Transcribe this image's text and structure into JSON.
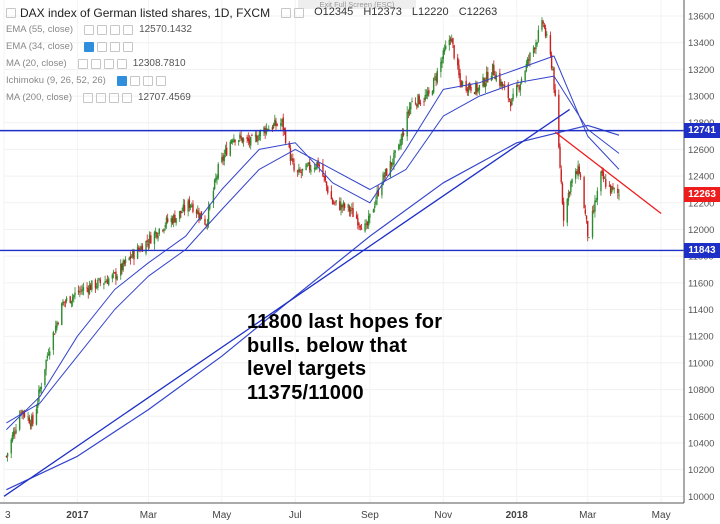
{
  "window": {
    "exit_fullscreen_label": "Exit Full Screen (ESC)"
  },
  "legend": {
    "title": "DAX index of German listed shares, 1D, FXCM",
    "ohlc": {
      "open": "O12345",
      "high": "H12373",
      "low": "L12220",
      "close": "C12263"
    },
    "indicators": [
      {
        "name": "EMA (55, close)",
        "value": "12570.1432"
      },
      {
        "name": "EMA (34, close)",
        "value": ""
      },
      {
        "name": "MA (20, close)",
        "value": "12308.7810"
      },
      {
        "name": "Ichimoku (9, 26, 52, 26)",
        "value": ""
      },
      {
        "name": "MA (200, close)",
        "value": "12707.4569"
      }
    ]
  },
  "annotation": {
    "lines": [
      "11800 last hopes for",
      "bulls. below that",
      "level targets",
      "11375/11000"
    ]
  },
  "price_badges": [
    {
      "label": "12741",
      "value": 12741,
      "color": "#1e2fc7"
    },
    {
      "label": "12263",
      "value": 12263,
      "color": "#ee1d1d"
    },
    {
      "label": "11843",
      "value": 11843,
      "color": "#1e2fc7"
    }
  ],
  "colors": {
    "up_candle": "#2d8a2d",
    "down_candle": "#c81e1e",
    "horizontal_level": "#1e2fc7",
    "trendline_up": "#1e2fc7",
    "trendline_down": "#ee1d1d",
    "ma_line": "#3344cc"
  },
  "chart_data": {
    "type": "candlestick",
    "title": "DAX index of German listed shares, 1D, FXCM",
    "y_axis": {
      "side": "right",
      "ylim": [
        9950,
        13720
      ],
      "ticks": [
        10000,
        10200,
        10400,
        10600,
        10800,
        11000,
        11200,
        11400,
        11600,
        11800,
        12000,
        12200,
        12400,
        12600,
        12800,
        13000,
        13200,
        13400,
        13600
      ],
      "tick_labels": [
        "10000",
        "10200",
        "10400",
        "10600",
        "10800",
        "11000",
        "11200",
        "11400",
        "11600",
        "11800",
        "12000",
        "12200",
        "12400",
        "12600",
        "12800",
        "13000",
        "13200",
        "13400",
        "13600"
      ]
    },
    "x_axis": {
      "xlim": [
        "2016-11-01",
        "2018-05-20"
      ],
      "ticks": [
        {
          "date": "2016-11-01",
          "label": "3"
        },
        {
          "date": "2017-01-01",
          "label": "2017"
        },
        {
          "date": "2017-03-01",
          "label": "Mar"
        },
        {
          "date": "2017-05-01",
          "label": "May"
        },
        {
          "date": "2017-07-01",
          "label": "Jul"
        },
        {
          "date": "2017-09-01",
          "label": "Sep"
        },
        {
          "date": "2017-11-01",
          "label": "Nov"
        },
        {
          "date": "2018-01-01",
          "label": "2018"
        },
        {
          "date": "2018-03-01",
          "label": "Mar"
        },
        {
          "date": "2018-05-01",
          "label": "May"
        }
      ]
    },
    "key_closes": [
      {
        "date": "2016-11-03",
        "close": 10300
      },
      {
        "date": "2016-11-15",
        "close": 10650
      },
      {
        "date": "2016-11-25",
        "close": 10550
      },
      {
        "date": "2016-12-08",
        "close": 11100
      },
      {
        "date": "2016-12-20",
        "close": 11450
      },
      {
        "date": "2017-01-05",
        "close": 11550
      },
      {
        "date": "2017-01-20",
        "close": 11600
      },
      {
        "date": "2017-02-01",
        "close": 11650
      },
      {
        "date": "2017-02-15",
        "close": 11800
      },
      {
        "date": "2017-03-01",
        "close": 11920
      },
      {
        "date": "2017-03-15",
        "close": 12050
      },
      {
        "date": "2017-03-25",
        "close": 12100
      },
      {
        "date": "2017-04-05",
        "close": 12200
      },
      {
        "date": "2017-04-18",
        "close": 12050
      },
      {
        "date": "2017-04-28",
        "close": 12450
      },
      {
        "date": "2017-05-10",
        "close": 12700
      },
      {
        "date": "2017-05-25",
        "close": 12650
      },
      {
        "date": "2017-06-05",
        "close": 12750
      },
      {
        "date": "2017-06-20",
        "close": 12800
      },
      {
        "date": "2017-07-01",
        "close": 12400
      },
      {
        "date": "2017-07-10",
        "close": 12450
      },
      {
        "date": "2017-07-20",
        "close": 12500
      },
      {
        "date": "2017-08-01",
        "close": 12200
      },
      {
        "date": "2017-08-15",
        "close": 12150
      },
      {
        "date": "2017-08-29",
        "close": 12000
      },
      {
        "date": "2017-09-10",
        "close": 12350
      },
      {
        "date": "2017-09-25",
        "close": 12600
      },
      {
        "date": "2017-10-05",
        "close": 12950
      },
      {
        "date": "2017-10-20",
        "close": 13000
      },
      {
        "date": "2017-11-07",
        "close": 13450
      },
      {
        "date": "2017-11-15",
        "close": 13100
      },
      {
        "date": "2017-11-30",
        "close": 13050
      },
      {
        "date": "2017-12-12",
        "close": 13200
      },
      {
        "date": "2017-12-28",
        "close": 12950
      },
      {
        "date": "2018-01-10",
        "close": 13250
      },
      {
        "date": "2018-01-23",
        "close": 13550
      },
      {
        "date": "2018-01-31",
        "close": 13200
      },
      {
        "date": "2018-02-05",
        "close": 12600
      },
      {
        "date": "2018-02-09",
        "close": 12100
      },
      {
        "date": "2018-02-15",
        "close": 12350
      },
      {
        "date": "2018-02-22",
        "close": 12450
      },
      {
        "date": "2018-03-02",
        "close": 11900
      },
      {
        "date": "2018-03-05",
        "close": 12100
      },
      {
        "date": "2018-03-12",
        "close": 12400
      },
      {
        "date": "2018-03-20",
        "close": 12300
      },
      {
        "date": "2018-03-27",
        "close": 12263
      }
    ],
    "ema_55": [
      {
        "date": "2016-11-03",
        "value": 10550
      },
      {
        "date": "2016-12-01",
        "value": 10700
      },
      {
        "date": "2017-01-01",
        "value": 11050
      },
      {
        "date": "2017-02-01",
        "value": 11400
      },
      {
        "date": "2017-03-01",
        "value": 11650
      },
      {
        "date": "2017-04-01",
        "value": 11850
      },
      {
        "date": "2017-05-01",
        "value": 12150
      },
      {
        "date": "2017-06-01",
        "value": 12450
      },
      {
        "date": "2017-07-01",
        "value": 12600
      },
      {
        "date": "2017-08-01",
        "value": 12450
      },
      {
        "date": "2017-09-01",
        "value": 12300
      },
      {
        "date": "2017-10-01",
        "value": 12450
      },
      {
        "date": "2017-11-01",
        "value": 12850
      },
      {
        "date": "2017-12-01",
        "value": 13000
      },
      {
        "date": "2018-01-01",
        "value": 13100
      },
      {
        "date": "2018-02-01",
        "value": 13150
      },
      {
        "date": "2018-03-01",
        "value": 12750
      },
      {
        "date": "2018-03-27",
        "value": 12570
      }
    ],
    "ema_34": [
      {
        "date": "2016-11-03",
        "value": 10500
      },
      {
        "date": "2016-12-01",
        "value": 10750
      },
      {
        "date": "2017-01-01",
        "value": 11200
      },
      {
        "date": "2017-02-01",
        "value": 11550
      },
      {
        "date": "2017-03-01",
        "value": 11750
      },
      {
        "date": "2017-04-01",
        "value": 11950
      },
      {
        "date": "2017-05-01",
        "value": 12300
      },
      {
        "date": "2017-06-01",
        "value": 12600
      },
      {
        "date": "2017-07-01",
        "value": 12650
      },
      {
        "date": "2017-08-01",
        "value": 12350
      },
      {
        "date": "2017-09-01",
        "value": 12200
      },
      {
        "date": "2017-10-01",
        "value": 12600
      },
      {
        "date": "2017-11-01",
        "value": 13050
      },
      {
        "date": "2017-12-01",
        "value": 13100
      },
      {
        "date": "2018-01-01",
        "value": 13200
      },
      {
        "date": "2018-02-01",
        "value": 13300
      },
      {
        "date": "2018-03-01",
        "value": 12700
      },
      {
        "date": "2018-03-27",
        "value": 12450
      }
    ],
    "ma_200": [
      {
        "date": "2016-11-03",
        "value": 10050
      },
      {
        "date": "2017-01-01",
        "value": 10300
      },
      {
        "date": "2017-03-01",
        "value": 10650
      },
      {
        "date": "2017-05-01",
        "value": 11050
      },
      {
        "date": "2017-07-01",
        "value": 11500
      },
      {
        "date": "2017-09-01",
        "value": 11950
      },
      {
        "date": "2017-11-01",
        "value": 12350
      },
      {
        "date": "2018-01-01",
        "value": 12650
      },
      {
        "date": "2018-03-01",
        "value": 12780
      },
      {
        "date": "2018-03-27",
        "value": 12707
      }
    ],
    "horizontal_levels": [
      12741,
      11843
    ],
    "trendlines": [
      {
        "name": "uptrend support",
        "from": {
          "date": "2016-11-01",
          "value": 10000
        },
        "to": {
          "date": "2018-02-14",
          "value": 12900
        }
      },
      {
        "name": "downtrend resistance",
        "from": {
          "date": "2018-02-02",
          "value": 12730
        },
        "to": {
          "date": "2018-05-01",
          "value": 12120
        }
      }
    ]
  }
}
